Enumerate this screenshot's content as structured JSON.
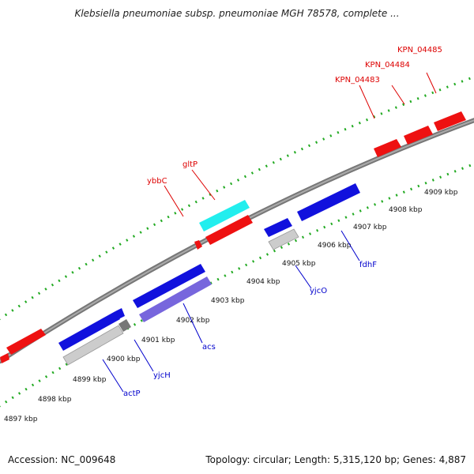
{
  "title": "Klebsiella pneumoniae subsp. pneumoniae MGH 78578, complete ...",
  "footer": {
    "accession": "Accession: NC_009648",
    "topology": "Topology: circular; Length: 5,315,120 bp; Genes: 4,887"
  },
  "ticks": [
    {
      "label": "4897 kbp"
    },
    {
      "label": "4898 kbp"
    },
    {
      "label": "4899 kbp"
    },
    {
      "label": "4900 kbp"
    },
    {
      "label": "4901 kbp"
    },
    {
      "label": "4902 kbp"
    },
    {
      "label": "4903 kbp"
    },
    {
      "label": "4904 kbp"
    },
    {
      "label": "4905 kbp"
    },
    {
      "label": "4906 kbp"
    },
    {
      "label": "4907 kbp"
    },
    {
      "label": "4908 kbp"
    },
    {
      "label": "4909 kbp"
    }
  ],
  "gene_labels": [
    {
      "name": "KPN_04485",
      "color": "#dd0000"
    },
    {
      "name": "KPN_04484",
      "color": "#dd0000"
    },
    {
      "name": "KPN_04483",
      "color": "#dd0000"
    },
    {
      "name": "gltP",
      "color": "#dd0000"
    },
    {
      "name": "ybbC",
      "color": "#dd0000"
    },
    {
      "name": "fdhF",
      "color": "#0000cc"
    },
    {
      "name": "yjcO",
      "color": "#0000cc"
    },
    {
      "name": "acs",
      "color": "#0000cc"
    },
    {
      "name": "yjcH",
      "color": "#0000cc"
    },
    {
      "name": "actP",
      "color": "#0000cc"
    }
  ],
  "colors": {
    "forward_gene": "#ee1111",
    "reverse_gene": "#1111dd",
    "backbone": "#888888",
    "tick": "#22aa22",
    "cyan_gene": "#22eeee",
    "gray_gene": "#cccccc",
    "violet_gene": "#7766dd"
  }
}
